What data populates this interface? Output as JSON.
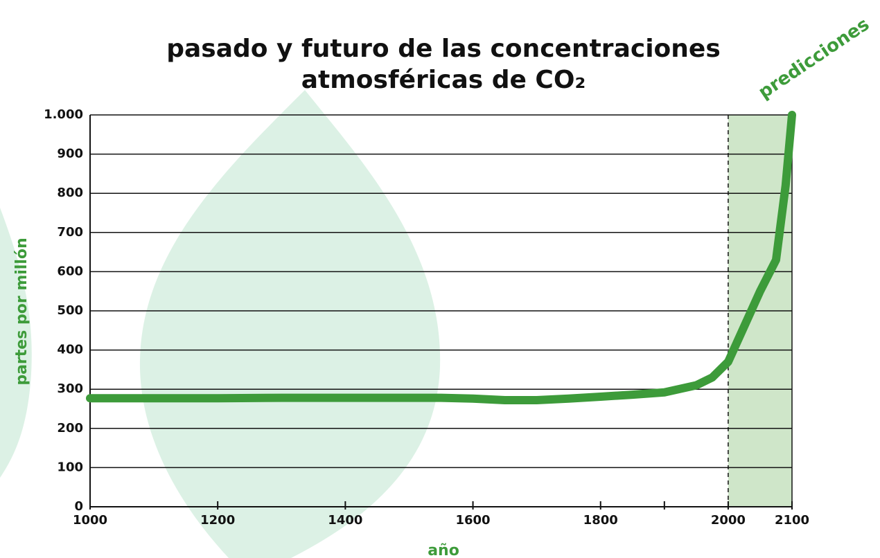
{
  "chart_data": {
    "type": "line",
    "title": [
      "pasado y futuro de las concentraciones",
      "atmosféricas de CO₂"
    ],
    "x_label": "año",
    "y_label": "partes por millón",
    "annotation": "predicciones",
    "shade": [
      2000,
      2100
    ],
    "x": [
      1000,
      1100,
      1200,
      1300,
      1400,
      1500,
      1550,
      1600,
      1650,
      1700,
      1750,
      1800,
      1850,
      1900,
      1950,
      1975,
      2000,
      2025,
      2050,
      2075,
      2090,
      2100
    ],
    "series": [
      {
        "name": "CO₂",
        "color": "#3d9b3a",
        "values": [
          277,
          277,
          277,
          278,
          278,
          278,
          278,
          276,
          272,
          272,
          276,
          281,
          286,
          292,
          310,
          330,
          370,
          460,
          550,
          630,
          820,
          1000
        ]
      }
    ],
    "xlim": [
      1000,
      2100
    ],
    "xticks": [
      1000,
      1200,
      1400,
      1600,
      1800,
      2000,
      2100
    ],
    "xminorticks": [
      1900
    ],
    "ylim": [
      0,
      1000
    ],
    "yticks": [
      0,
      100,
      200,
      300,
      400,
      500,
      600,
      700,
      800,
      900,
      {
        "value": 1000,
        "label": "1.000"
      }
    ],
    "grid": true
  }
}
